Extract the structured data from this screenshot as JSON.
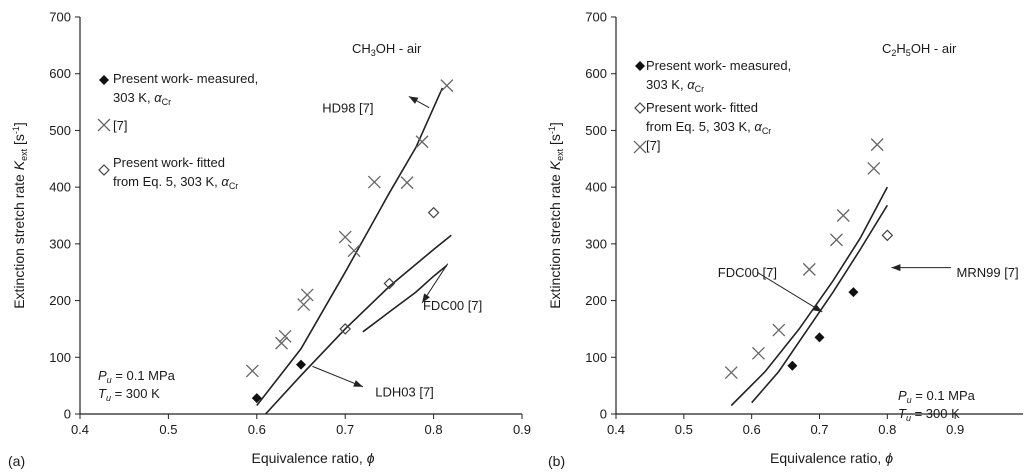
{
  "chart_data": [
    {
      "type": "scatter",
      "panel_label": "(a)",
      "xlabel_text": "Equivalence ratio, ",
      "xlabel_sym": "ϕ",
      "ylabel_a": "Extinction stretch rate ",
      "ylabel_sym": "K",
      "ylabel_sub": "ext",
      "ylabel_b": " [s",
      "ylabel_sup": "-1",
      "ylabel_c": "]",
      "xlim": [
        0.4,
        0.9
      ],
      "ylim": [
        0,
        700
      ],
      "xticks": [
        "0.4",
        "0.5",
        "0.6",
        "0.7",
        "0.8",
        "0.9"
      ],
      "yticks": [
        "0",
        "100",
        "200",
        "300",
        "400",
        "500",
        "600",
        "700"
      ],
      "mixture": {
        "pre": "CH",
        "sub1": "3",
        "post": "OH - air"
      },
      "legend": [
        {
          "marker": "diamond-filled",
          "lines": [
            "Present work- measured,",
            "303 K, α"
          ],
          "sub": "Cr"
        },
        {
          "marker": "cross",
          "lines": [
            "[7]"
          ],
          "sub": ""
        },
        {
          "marker": "diamond-open",
          "lines": [
            "Present work- fitted",
            "from Eq. 5, 303 K, α"
          ],
          "sub": "Cr"
        }
      ],
      "conditions": {
        "p_sym": "P",
        "p_sub": "u",
        "p_val": " = 0.1 MPa",
        "t_sym": "T",
        "t_sub": "u",
        "t_val": " = 300 K"
      },
      "series": [
        {
          "marker": "diamond-filled",
          "x": [
            0.6,
            0.65
          ],
          "y": [
            28,
            87
          ]
        },
        {
          "marker": "cross",
          "x": [
            0.595,
            0.628,
            0.632,
            0.653,
            0.657,
            0.7,
            0.71,
            0.733,
            0.77,
            0.787,
            0.815
          ],
          "y": [
            76,
            125,
            137,
            193,
            210,
            312,
            288,
            409,
            408,
            480,
            579
          ]
        },
        {
          "marker": "diamond-open",
          "x": [
            0.7,
            0.75,
            0.8
          ],
          "y": [
            150,
            230,
            355
          ]
        }
      ],
      "curves": [
        {
          "name": "HD98 [7]",
          "x": [
            0.6,
            0.65,
            0.7,
            0.75,
            0.78,
            0.81
          ],
          "y": [
            15,
            115,
            250,
            390,
            470,
            575
          ]
        },
        {
          "name": "LDH03 [7]",
          "x": [
            0.61,
            0.65,
            0.7,
            0.75,
            0.8,
            0.82
          ],
          "y": [
            0,
            68,
            150,
            225,
            290,
            315
          ]
        },
        {
          "name": "FDC00 [7]",
          "x": [
            0.72,
            0.75,
            0.78,
            0.8,
            0.815
          ],
          "y": [
            145,
            180,
            215,
            243,
            262
          ]
        }
      ],
      "annotations": [
        {
          "text": "HD98 [7]",
          "tx": 0.674,
          "ty": 540,
          "ax": 0.795,
          "ay": 540,
          "hx": 0.772,
          "hy": 560
        },
        {
          "text": "FDC00 [7]",
          "tx": 0.788,
          "ty": 192,
          "ax": 0.816,
          "ay": 265,
          "hx": 0.787,
          "hy": 196
        },
        {
          "text": "LDH03 [7]",
          "tx": 0.734,
          "ty": 40,
          "ax": 0.663,
          "ay": 84,
          "hx": 0.72,
          "hy": 48
        }
      ]
    },
    {
      "type": "scatter",
      "panel_label": "(b)",
      "xlabel_text": "Equivalence ratio, ",
      "xlabel_sym": "ϕ",
      "ylabel_a": "Extinction stretch rate ",
      "ylabel_sym": "K",
      "ylabel_sub": "ext",
      "ylabel_b": " [s",
      "ylabel_sup": "-1",
      "ylabel_c": "]",
      "xlim": [
        0.4,
        1.0
      ],
      "ylim": [
        0,
        700
      ],
      "xticks": [
        "0.4",
        "0.5",
        "0.6",
        "0.7",
        "0.8",
        "0.9"
      ],
      "yticks": [
        "0",
        "100",
        "200",
        "300",
        "400",
        "500",
        "600",
        "700"
      ],
      "mixture": {
        "pre": "C",
        "sub1": "2",
        "mid": "H",
        "sub2": "5",
        "post": "OH - air"
      },
      "legend": [
        {
          "marker": "diamond-filled",
          "lines": [
            "Present work- measured,",
            "303 K, α"
          ],
          "sub": "Cr"
        },
        {
          "marker": "diamond-open",
          "lines": [
            "Present work- fitted",
            "from Eq. 5, 303 K, α"
          ],
          "sub": "Cr"
        },
        {
          "marker": "cross",
          "lines": [
            "[7]"
          ],
          "sub": ""
        }
      ],
      "conditions": {
        "p_sym": "P",
        "p_sub": "u",
        "p_val": " = 0.1 MPa",
        "t_sym": "T",
        "t_sub": "u",
        "t_val": " = 300 K"
      },
      "series": [
        {
          "marker": "diamond-filled",
          "x": [
            0.66,
            0.7,
            0.75
          ],
          "y": [
            85,
            135,
            215
          ]
        },
        {
          "marker": "cross",
          "x": [
            0.57,
            0.61,
            0.64,
            0.685,
            0.725,
            0.735,
            0.78,
            0.785
          ],
          "y": [
            73,
            107,
            148,
            255,
            307,
            350,
            433,
            475
          ]
        },
        {
          "marker": "diamond-open",
          "x": [
            0.8
          ],
          "y": [
            315
          ]
        }
      ],
      "curves": [
        {
          "name": "FDC00 [7]",
          "x": [
            0.57,
            0.62,
            0.67,
            0.72,
            0.76,
            0.8
          ],
          "y": [
            15,
            75,
            150,
            235,
            310,
            400
          ]
        },
        {
          "name": "MRN99 [7]",
          "x": [
            0.6,
            0.64,
            0.68,
            0.72,
            0.76,
            0.8
          ],
          "y": [
            20,
            75,
            145,
            215,
            290,
            368
          ]
        }
      ],
      "annotations": [
        {
          "text": "FDC00 [7]",
          "tx": 0.55,
          "ty": 250,
          "ax": 0.608,
          "ay": 250,
          "hx": 0.704,
          "hy": 180
        },
        {
          "text": "MRN99 [7]",
          "tx": 0.902,
          "ty": 250,
          "ax": 0.894,
          "ay": 258,
          "hx": 0.806,
          "hy": 258
        }
      ]
    }
  ]
}
